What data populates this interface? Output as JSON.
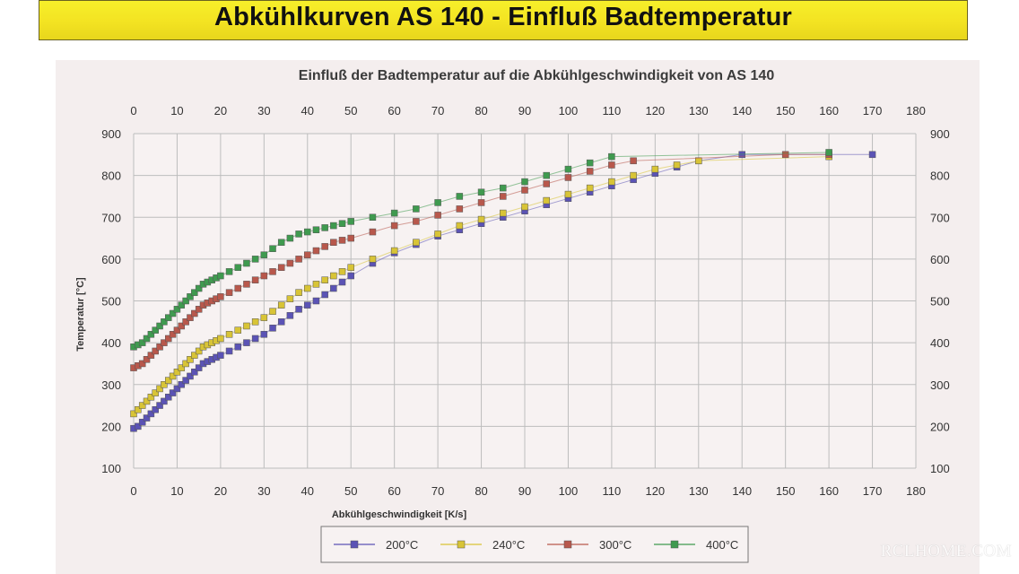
{
  "banner": {
    "title": "Abkühlkurven AS 140 - Einfluß Badtemperatur"
  },
  "watermark": "RCLHOME.COM",
  "colors": {
    "banner": "#f3e322",
    "s200": "#5b53b5",
    "s240": "#d8c436",
    "s300": "#b8584c",
    "s400": "#3f9a4f"
  },
  "chart_data": {
    "type": "scatter",
    "title": "Einfluß der Badtemperatur auf die Abkühlgeschwindigkeit von AS 140",
    "xlabel": "Abkühlgeschwindigkeit [K/s]",
    "ylabel": "Temperatur [°C]",
    "xlim": [
      0,
      180
    ],
    "ylim": [
      100,
      900
    ],
    "xticks": [
      "0",
      "10",
      "20",
      "30",
      "40",
      "50",
      "60",
      "70",
      "80",
      "90",
      "100",
      "110",
      "120",
      "130",
      "140",
      "150",
      "160",
      "170",
      "180"
    ],
    "yticks": [
      "100",
      "200",
      "300",
      "400",
      "500",
      "600",
      "700",
      "800",
      "900"
    ],
    "grid": true,
    "legend_position": "bottom",
    "series": [
      {
        "name": "200°C",
        "color": "#5b53b5",
        "x": [
          0,
          1,
          2,
          3,
          4,
          5,
          6,
          7,
          8,
          9,
          10,
          11,
          12,
          13,
          14,
          15,
          16,
          17,
          18,
          19,
          20,
          22,
          24,
          26,
          28,
          30,
          32,
          34,
          36,
          38,
          40,
          42,
          44,
          46,
          48,
          50,
          55,
          60,
          65,
          70,
          75,
          80,
          85,
          90,
          95,
          100,
          105,
          110,
          115,
          120,
          125,
          130,
          140,
          170
        ],
        "y": [
          195,
          200,
          210,
          220,
          230,
          240,
          250,
          260,
          270,
          280,
          290,
          300,
          310,
          320,
          330,
          340,
          350,
          355,
          360,
          365,
          370,
          380,
          390,
          400,
          410,
          420,
          435,
          450,
          465,
          480,
          490,
          500,
          515,
          530,
          545,
          560,
          590,
          615,
          635,
          655,
          670,
          685,
          700,
          715,
          730,
          745,
          760,
          775,
          790,
          805,
          820,
          835,
          850,
          850
        ]
      },
      {
        "name": "240°C",
        "color": "#d8c436",
        "x": [
          0,
          1,
          2,
          3,
          4,
          5,
          6,
          7,
          8,
          9,
          10,
          11,
          12,
          13,
          14,
          15,
          16,
          17,
          18,
          19,
          20,
          22,
          24,
          26,
          28,
          30,
          32,
          34,
          36,
          38,
          40,
          42,
          44,
          46,
          48,
          50,
          55,
          60,
          65,
          70,
          75,
          80,
          85,
          90,
          95,
          100,
          105,
          110,
          115,
          120,
          125,
          130,
          160
        ],
        "y": [
          230,
          240,
          250,
          260,
          270,
          280,
          290,
          300,
          310,
          320,
          330,
          340,
          350,
          360,
          370,
          380,
          390,
          395,
          400,
          405,
          410,
          420,
          430,
          440,
          450,
          460,
          475,
          490,
          505,
          520,
          530,
          540,
          550,
          560,
          570,
          580,
          600,
          620,
          640,
          660,
          680,
          695,
          710,
          725,
          740,
          755,
          770,
          785,
          800,
          815,
          825,
          835,
          845
        ]
      },
      {
        "name": "300°C",
        "color": "#b8584c",
        "x": [
          0,
          1,
          2,
          3,
          4,
          5,
          6,
          7,
          8,
          9,
          10,
          11,
          12,
          13,
          14,
          15,
          16,
          17,
          18,
          19,
          20,
          22,
          24,
          26,
          28,
          30,
          32,
          34,
          36,
          38,
          40,
          42,
          44,
          46,
          48,
          50,
          55,
          60,
          65,
          70,
          75,
          80,
          85,
          90,
          95,
          100,
          105,
          110,
          115,
          150,
          160
        ],
        "y": [
          340,
          345,
          350,
          360,
          370,
          380,
          390,
          400,
          410,
          420,
          430,
          440,
          450,
          460,
          470,
          480,
          490,
          495,
          500,
          505,
          510,
          520,
          530,
          540,
          550,
          560,
          570,
          580,
          590,
          600,
          610,
          620,
          630,
          640,
          645,
          650,
          665,
          680,
          690,
          705,
          720,
          735,
          750,
          765,
          780,
          795,
          810,
          825,
          835,
          850,
          850
        ]
      },
      {
        "name": "400°C",
        "color": "#3f9a4f",
        "x": [
          0,
          1,
          2,
          3,
          4,
          5,
          6,
          7,
          8,
          9,
          10,
          11,
          12,
          13,
          14,
          15,
          16,
          17,
          18,
          19,
          20,
          22,
          24,
          26,
          28,
          30,
          32,
          34,
          36,
          38,
          40,
          42,
          44,
          46,
          48,
          50,
          55,
          60,
          65,
          70,
          75,
          80,
          85,
          90,
          95,
          100,
          105,
          110,
          160
        ],
        "y": [
          390,
          395,
          400,
          410,
          420,
          430,
          440,
          450,
          460,
          470,
          480,
          490,
          500,
          510,
          520,
          530,
          540,
          545,
          550,
          555,
          560,
          570,
          580,
          590,
          600,
          610,
          625,
          640,
          650,
          660,
          665,
          670,
          675,
          680,
          685,
          690,
          700,
          710,
          720,
          735,
          750,
          760,
          770,
          785,
          800,
          815,
          830,
          845,
          855
        ]
      }
    ]
  }
}
